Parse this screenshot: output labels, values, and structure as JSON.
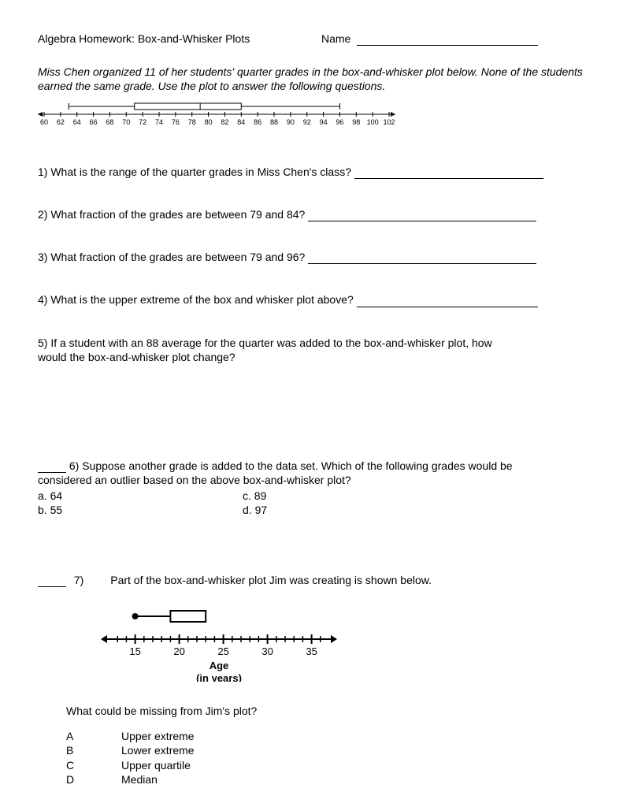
{
  "header": {
    "title": "Algebra Homework: Box-and-Whisker Plots",
    "name_label": "Name"
  },
  "intro": "Miss Chen organized 11 of her students' quarter grades in the box-and-whisker plot below. None of the students earned the same grade.  Use the plot to answer the following questions.",
  "plot1": {
    "type": "boxplot",
    "axis_min": 60,
    "axis_max": 102,
    "tick_step": 2,
    "tick_label_fontsize": 9,
    "min": 63,
    "q1": 71,
    "median": 79,
    "q3": 84,
    "max": 96,
    "line_color": "#000000",
    "background_color": "#ffffff"
  },
  "questions": {
    "q1": "1)  What is the range of the quarter grades in Miss Chen's class?",
    "q2": "2)  What fraction of the grades are between 79 and 84?",
    "q3": "3)  What fraction of the grades are between 79 and 96?",
    "q4": "4)  What is the upper extreme of the box and whisker plot above?",
    "q5_l1": "5)  If a student with an 88 average for the quarter was added to the box-and-whisker plot, how",
    "q5_l2": "would the box-and-whisker plot change?",
    "q6_l1": "6)  Suppose another grade is added to the data set. Which of the following grades would be",
    "q6_l2": "considered an outlier based on the above box-and-whisker plot?",
    "q6_a": "a.  64",
    "q6_b": "b.  55",
    "q6_c": "c.  89",
    "q6_d": "d.  97",
    "q7_num": "7)",
    "q7_text": "Part of the box-and-whisker plot Jim was creating is shown below.",
    "q7_sub": "What could be missing from Jim's plot?",
    "q7_A_lbl": "A",
    "q7_A": "Upper extreme",
    "q7_B_lbl": "B",
    "q7_B": "Lower extreme",
    "q7_C_lbl": "C",
    "q7_C": "Upper quartile",
    "q7_D_lbl": "D",
    "q7_D": "Median"
  },
  "plot2": {
    "type": "boxplot",
    "axis_min": 12,
    "axis_max": 37,
    "major_ticks": [
      15,
      20,
      25,
      30,
      35
    ],
    "min": 15,
    "q1": 19,
    "q3": 23,
    "xlabel1": "Age",
    "xlabel2": "(in years)",
    "label_fontsize": 13,
    "line_width": 2,
    "line_color": "#000000",
    "background_color": "#ffffff"
  }
}
